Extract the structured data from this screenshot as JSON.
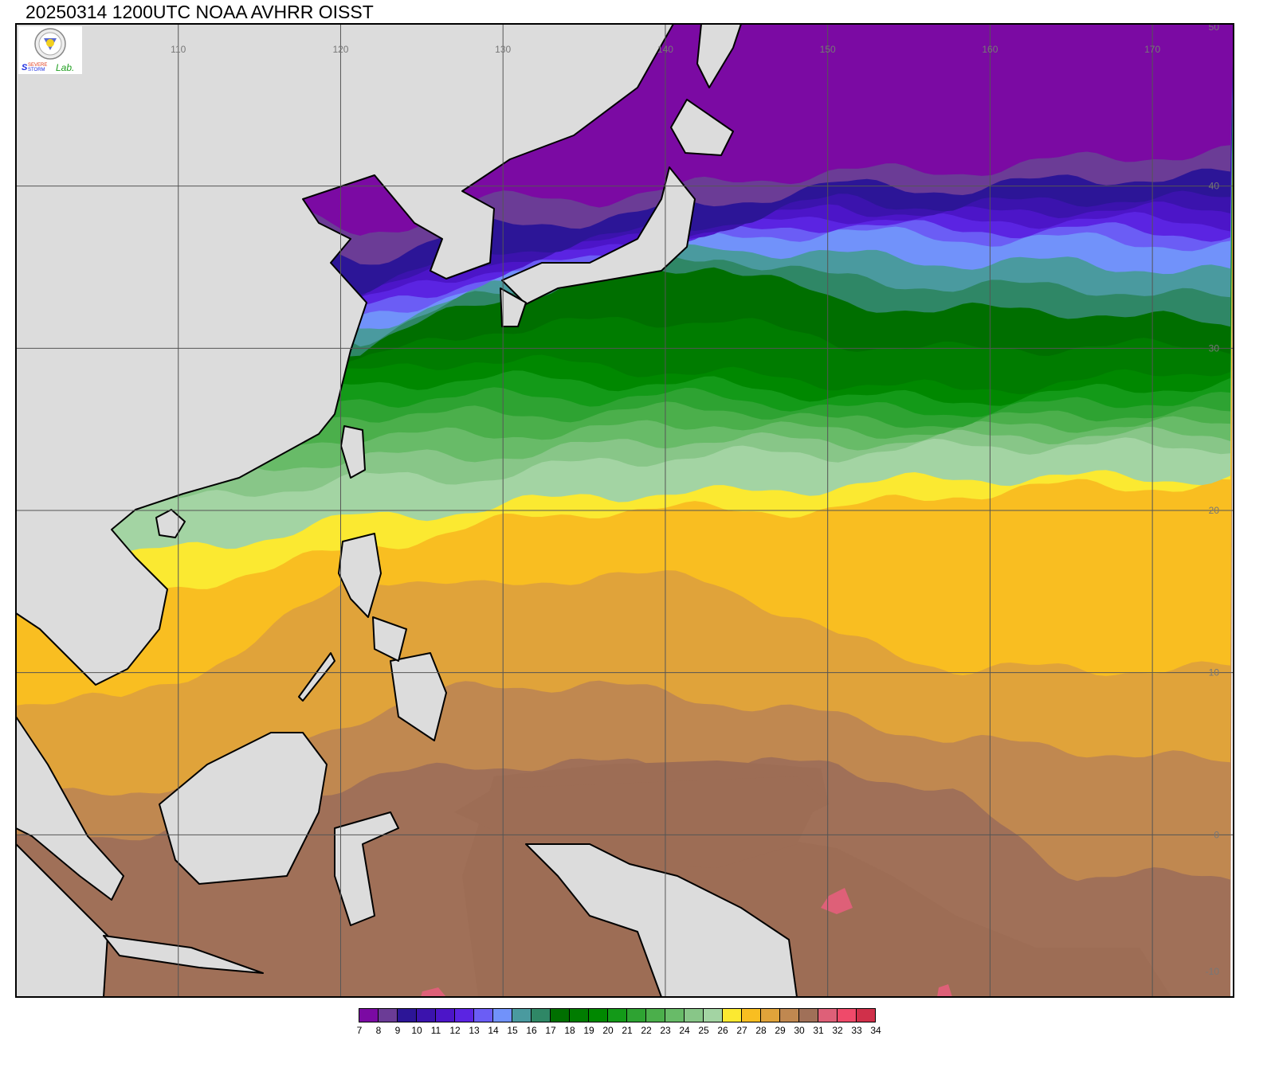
{
  "title": "20250314 1200UTC NOAA AVHRR OISST",
  "logo": {
    "seal": "seal-emblem",
    "text_severe": "SEVERE",
    "text_storm": "STORM",
    "text_lab": "Lab."
  },
  "map": {
    "lon_range": [
      100,
      175
    ],
    "lat_range": [
      -10,
      50
    ],
    "lon_labels": [
      "110",
      "120",
      "130",
      "140",
      "150",
      "160",
      "170"
    ],
    "lat_labels": [
      "50",
      "40",
      "30",
      "20",
      "10",
      "0",
      "-10"
    ],
    "land_color": "#dcdcdc",
    "grid": true
  },
  "colorbar": {
    "labels": [
      "7",
      "8",
      "9",
      "10",
      "11",
      "12",
      "13",
      "14",
      "15",
      "16",
      "17",
      "18",
      "19",
      "20",
      "21",
      "22",
      "23",
      "24",
      "25",
      "26",
      "27",
      "28",
      "29",
      "30",
      "31",
      "32",
      "33",
      "34"
    ],
    "colors": [
      "#7b0aa3",
      "#6b3c96",
      "#2c1597",
      "#3b13ad",
      "#4c15c8",
      "#5b24e2",
      "#6b5df5",
      "#7192fa",
      "#4a9a9f",
      "#2f8766",
      "#006f00",
      "#007c00",
      "#008800",
      "#139a18",
      "#2ea332",
      "#4baf4b",
      "#68bb68",
      "#88c688",
      "#a3d4a3",
      "#fbe931",
      "#f9be21",
      "#e0a33a",
      "#c08850",
      "#a07058",
      "#de6078",
      "#ef4a6a",
      "#d0304a"
    ]
  }
}
